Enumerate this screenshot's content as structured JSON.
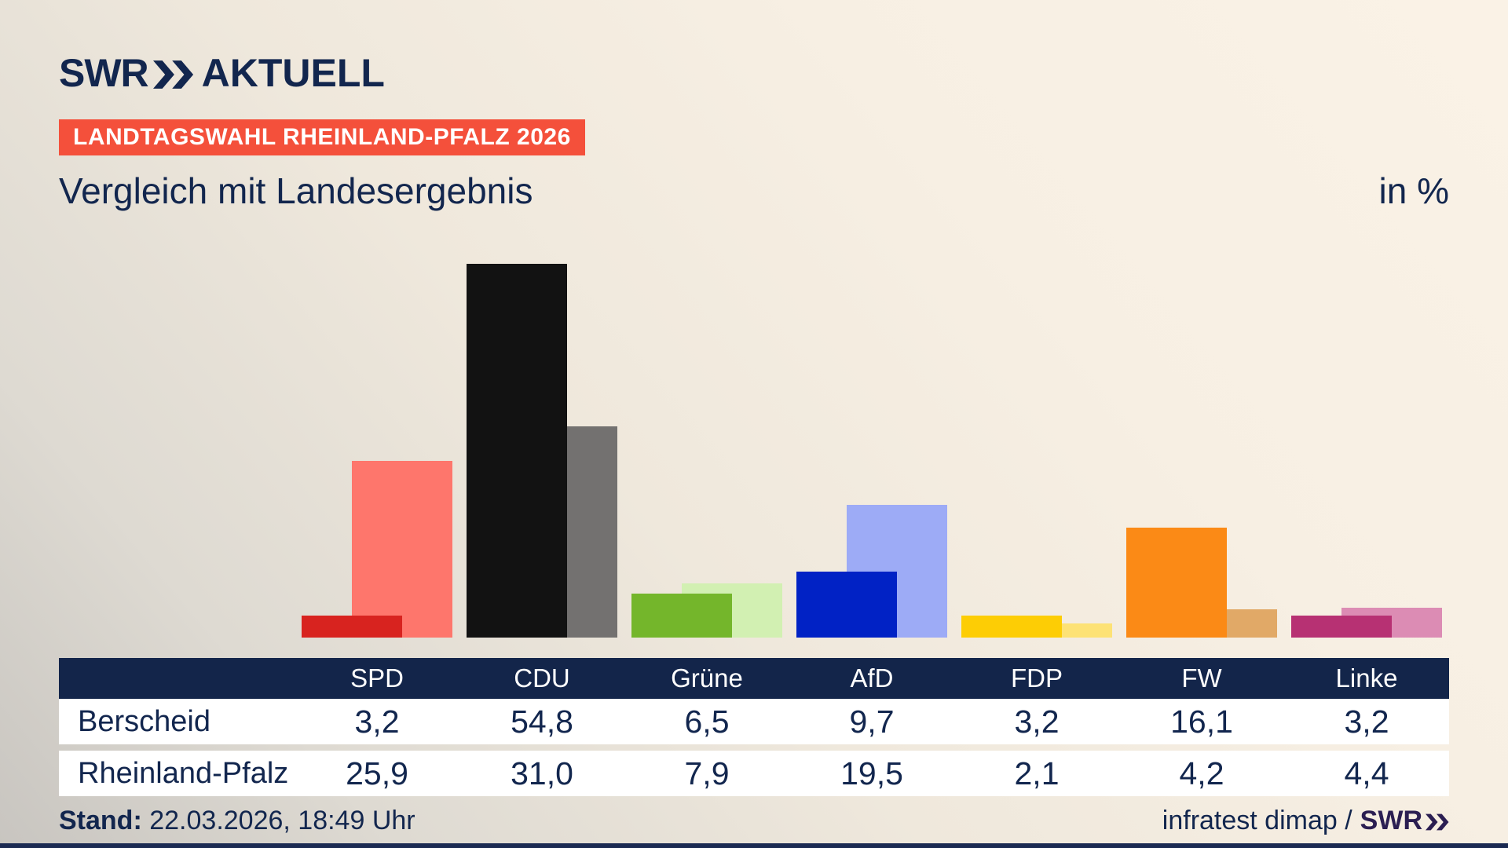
{
  "brand": {
    "logo_text": "SWR",
    "logo_suffix": "AKTUELL"
  },
  "badge": {
    "label": "LANDTAGSWAHL RHEINLAND-PFALZ 2026"
  },
  "title": "Vergleich mit Landesergebnis",
  "unit_label": "in %",
  "footer": {
    "stand_label": "Stand:",
    "stand_value": "22.03.2026, 18:49 Uhr",
    "source_text": "infratest dimap /",
    "source_logo": "SWR"
  },
  "colors": {
    "page_text_navy": "#12264e",
    "table_header_navy": "#13254a",
    "badge_red": "#f4503b",
    "footer_logo_purple": "#2b1e52",
    "bottom_strip_navy": "#1b2a52"
  },
  "chart_data": {
    "type": "bar",
    "title": "Vergleich mit Landesergebnis",
    "ylabel": "in %",
    "categories": [
      "SPD",
      "CDU",
      "Grüne",
      "AfD",
      "FDP",
      "FW",
      "Linke"
    ],
    "series": [
      {
        "name": "Berscheid",
        "role": "foreground",
        "values": [
          3.2,
          54.8,
          6.5,
          9.7,
          3.2,
          16.1,
          3.2
        ]
      },
      {
        "name": "Rheinland-Pfalz",
        "role": "background",
        "values": [
          25.9,
          31.0,
          7.9,
          19.5,
          2.1,
          4.2,
          4.4
        ]
      }
    ],
    "bar_colors": {
      "foreground": [
        "#d8231f",
        "#121212",
        "#74b62b",
        "#0122c5",
        "#fdcd05",
        "#fb8a16",
        "#b73173"
      ],
      "background": [
        "#fe766c",
        "#737170",
        "#d2f0b2",
        "#9dabf6",
        "#fde275",
        "#e1a967",
        "#dc8cb4"
      ]
    },
    "grid": false,
    "legend_position": "table-below",
    "ylim": [
      0,
      60
    ]
  },
  "table": {
    "header": [
      "SPD",
      "CDU",
      "Grüne",
      "AfD",
      "FDP",
      "FW",
      "Linke"
    ],
    "rows": [
      {
        "label": "Berscheid",
        "values": [
          "3,2",
          "54,8",
          "6,5",
          "9,7",
          "3,2",
          "16,1",
          "3,2"
        ]
      },
      {
        "label": "Rheinland-Pfalz",
        "values": [
          "25,9",
          "31,0",
          "7,9",
          "19,5",
          "2,1",
          "4,2",
          "4,4"
        ]
      }
    ]
  }
}
